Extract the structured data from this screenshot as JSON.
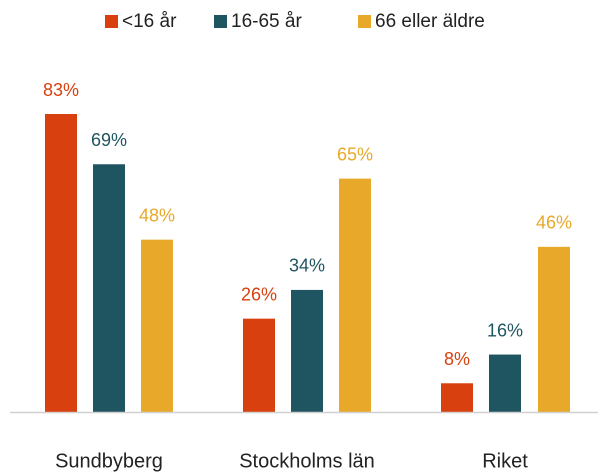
{
  "chart_data": {
    "type": "bar",
    "categories": [
      "Sundbyberg",
      "Stockholms län",
      "Riket"
    ],
    "series": [
      {
        "name": "<16 år",
        "color": "#d9400f",
        "values": [
          83,
          26,
          8
        ],
        "value_labels": [
          "83%",
          "26%",
          "8%"
        ]
      },
      {
        "name": "16-65 år",
        "color": "#1f5560",
        "values": [
          69,
          34,
          16
        ],
        "value_labels": [
          "69%",
          "34%",
          "16%"
        ]
      },
      {
        "name": "66 eller äldre",
        "color": "#e8a82a",
        "values": [
          48,
          65,
          46
        ],
        "value_labels": [
          "48%",
          "65%",
          "46%"
        ]
      }
    ],
    "legend": "top"
  }
}
